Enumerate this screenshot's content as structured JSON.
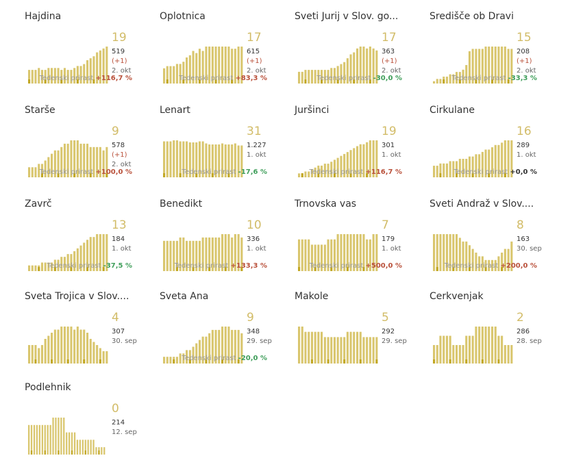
{
  "label_trend": "Tedenski prirast",
  "colors": {
    "bar": "#d9c66e",
    "bar_dark": "#c2a825",
    "bg": "#d9c66e",
    "up": "#b9503a",
    "down": "#3f9e5a",
    "flat": "#333333",
    "accent": "#d2bc68"
  },
  "cards": [
    {
      "name": "Hajdina",
      "new": "19",
      "total": "519",
      "inc": "(+1)",
      "date": "2. okt",
      "trend": "+116,7 %",
      "dir": "up"
    },
    {
      "name": "Oplotnica",
      "new": "17",
      "total": "615",
      "inc": "(+1)",
      "date": "2. okt",
      "trend": "+83,3 %",
      "dir": "up"
    },
    {
      "name": "Sveti Jurij v Slov. go...",
      "new": "17",
      "total": "363",
      "inc": "(+1)",
      "date": "2. okt",
      "trend": "-30,0 %",
      "dir": "down"
    },
    {
      "name": "Središče ob Dravi",
      "new": "15",
      "total": "208",
      "inc": "(+1)",
      "date": "2. okt",
      "trend": "-33,3 %",
      "dir": "down"
    },
    {
      "name": "Starše",
      "new": "9",
      "total": "578",
      "inc": "(+1)",
      "date": "2. okt",
      "trend": "+100,0 %",
      "dir": "up"
    },
    {
      "name": "Lenart",
      "new": "31",
      "total": "1.227",
      "inc": "",
      "date": "1. okt",
      "trend": "-17,6 %",
      "dir": "down"
    },
    {
      "name": "Juršinci",
      "new": "19",
      "total": "301",
      "inc": "",
      "date": "1. okt",
      "trend": "+116,7 %",
      "dir": "up"
    },
    {
      "name": "Cirkulane",
      "new": "16",
      "total": "289",
      "inc": "",
      "date": "1. okt",
      "trend": "+0,0 %",
      "dir": "flat"
    },
    {
      "name": "Zavrč",
      "new": "13",
      "total": "184",
      "inc": "",
      "date": "1. okt",
      "trend": "-37,5 %",
      "dir": "down"
    },
    {
      "name": "Benedikt",
      "new": "10",
      "total": "336",
      "inc": "",
      "date": "1. okt",
      "trend": "+133,3 %",
      "dir": "up"
    },
    {
      "name": "Trnovska vas",
      "new": "7",
      "total": "179",
      "inc": "",
      "date": "1. okt",
      "trend": "+500,0 %",
      "dir": "up"
    },
    {
      "name": "Sveti Andraž v Slov....",
      "new": "8",
      "total": "163",
      "inc": "",
      "date": "30. sep",
      "trend": "+200,0 %",
      "dir": "up"
    },
    {
      "name": "Sveta Trojica v Slov....",
      "new": "4",
      "total": "307",
      "inc": "",
      "date": "30. sep",
      "trend": "",
      "dir": ""
    },
    {
      "name": "Sveta Ana",
      "new": "9",
      "total": "348",
      "inc": "",
      "date": "29. sep",
      "trend": "-20,0 %",
      "dir": "down"
    },
    {
      "name": "Makole",
      "new": "5",
      "total": "292",
      "inc": "",
      "date": "29. sep",
      "trend": "",
      "dir": ""
    },
    {
      "name": "Cerkvenjak",
      "new": "2",
      "total": "286",
      "inc": "",
      "date": "28. sep",
      "trend": "",
      "dir": ""
    },
    {
      "name": "Podlehnik",
      "new": "0",
      "total": "214",
      "inc": "",
      "date": "12. sep",
      "trend": "",
      "dir": ""
    }
  ],
  "chart_data": [
    {
      "type": "bar",
      "title": "Hajdina",
      "values": [
        7,
        7,
        7,
        8,
        7,
        7,
        8,
        8,
        8,
        8,
        7,
        8,
        7,
        7,
        8,
        9,
        9,
        10,
        12,
        13,
        14,
        16,
        17,
        18,
        19
      ]
    },
    {
      "type": "bar",
      "title": "Oplotnica",
      "values": [
        7,
        8,
        8,
        8,
        9,
        9,
        10,
        12,
        13,
        15,
        14,
        16,
        15,
        17,
        17,
        17,
        17,
        17,
        17,
        17,
        17,
        16,
        16,
        17,
        17
      ]
    },
    {
      "type": "bar",
      "title": "Sveti Jurij v Slov. go...",
      "values": [
        6,
        6,
        7,
        7,
        7,
        7,
        7,
        7,
        7,
        7,
        8,
        8,
        9,
        10,
        11,
        13,
        15,
        16,
        18,
        19,
        19,
        18,
        19,
        18,
        17
      ]
    },
    {
      "type": "bar",
      "title": "Središče ob Dravi",
      "values": [
        1,
        2,
        2,
        3,
        3,
        4,
        4,
        5,
        5,
        6,
        8,
        14,
        15,
        15,
        15,
        15,
        16,
        16,
        16,
        16,
        16,
        16,
        16,
        15,
        15
      ]
    },
    {
      "type": "bar",
      "title": "Starše",
      "values": [
        3,
        3,
        3,
        4,
        4,
        5,
        6,
        7,
        8,
        8,
        9,
        10,
        10,
        11,
        11,
        11,
        10,
        10,
        10,
        9,
        9,
        9,
        9,
        8,
        9
      ]
    },
    {
      "type": "bar",
      "title": "Lenart",
      "values": [
        35,
        35,
        35,
        36,
        36,
        35,
        35,
        35,
        34,
        34,
        34,
        35,
        35,
        33,
        32,
        32,
        32,
        32,
        33,
        32,
        32,
        32,
        33,
        31,
        31
      ]
    },
    {
      "type": "bar",
      "title": "Juršinci",
      "values": [
        2,
        2,
        3,
        3,
        4,
        5,
        6,
        6,
        7,
        7,
        8,
        9,
        10,
        11,
        12,
        13,
        14,
        15,
        16,
        17,
        17,
        18,
        19,
        19,
        19
      ]
    },
    {
      "type": "bar",
      "title": "Cirkulane",
      "values": [
        5,
        5,
        6,
        6,
        6,
        7,
        7,
        7,
        8,
        8,
        8,
        9,
        9,
        10,
        10,
        11,
        12,
        12,
        13,
        14,
        14,
        15,
        16,
        16,
        16
      ]
    },
    {
      "type": "bar",
      "title": "Zavrč",
      "values": [
        2,
        2,
        2,
        2,
        3,
        3,
        3,
        3,
        4,
        4,
        5,
        5,
        6,
        6,
        7,
        8,
        9,
        10,
        11,
        12,
        12,
        13,
        13,
        13,
        13
      ]
    },
    {
      "type": "bar",
      "title": "Benedikt",
      "values": [
        9,
        9,
        9,
        9,
        9,
        10,
        10,
        9,
        9,
        9,
        9,
        9,
        10,
        10,
        10,
        10,
        10,
        10,
        11,
        11,
        11,
        10,
        11,
        11,
        10
      ]
    },
    {
      "type": "bar",
      "title": "Trnovska vas",
      "values": [
        6,
        6,
        6,
        6,
        5,
        5,
        5,
        5,
        5,
        6,
        6,
        6,
        7,
        7,
        7,
        7,
        7,
        7,
        7,
        7,
        7,
        6,
        6,
        7,
        7
      ]
    },
    {
      "type": "bar",
      "title": "Sveti Andraž v Slov....",
      "values": [
        10,
        10,
        10,
        10,
        10,
        10,
        10,
        10,
        9,
        8,
        8,
        7,
        6,
        5,
        4,
        4,
        3,
        3,
        3,
        3,
        4,
        5,
        6,
        6,
        8
      ]
    },
    {
      "type": "bar",
      "title": "Sveta Trojica v Slov....",
      "values": [
        6,
        6,
        6,
        5,
        6,
        8,
        9,
        10,
        11,
        11,
        12,
        12,
        12,
        12,
        11,
        12,
        11,
        11,
        10,
        8,
        7,
        6,
        5,
        4,
        4
      ]
    },
    {
      "type": "bar",
      "title": "Sveta Ana",
      "values": [
        2,
        2,
        2,
        2,
        2,
        3,
        3,
        4,
        4,
        5,
        6,
        7,
        8,
        8,
        9,
        10,
        10,
        10,
        11,
        11,
        11,
        10,
        10,
        10,
        9
      ]
    },
    {
      "type": "bar",
      "title": "Makole",
      "values": [
        7,
        7,
        6,
        6,
        6,
        6,
        6,
        6,
        5,
        5,
        5,
        5,
        5,
        5,
        5,
        6,
        6,
        6,
        6,
        6,
        5,
        5,
        5,
        5,
        5
      ]
    },
    {
      "type": "bar",
      "title": "Cerkvenjak",
      "values": [
        2,
        2,
        3,
        3,
        3,
        3,
        2,
        2,
        2,
        2,
        3,
        3,
        3,
        4,
        4,
        4,
        4,
        4,
        4,
        4,
        3,
        3,
        2,
        2,
        2
      ]
    },
    {
      "type": "bar",
      "title": "Podlehnik",
      "values": [
        4,
        4,
        4,
        4,
        4,
        4,
        4,
        4,
        4,
        5,
        5,
        5,
        5,
        5,
        3,
        3,
        3,
        3,
        2,
        2,
        2,
        2,
        2,
        2,
        2,
        1,
        1,
        1,
        1,
        0
      ]
    }
  ]
}
